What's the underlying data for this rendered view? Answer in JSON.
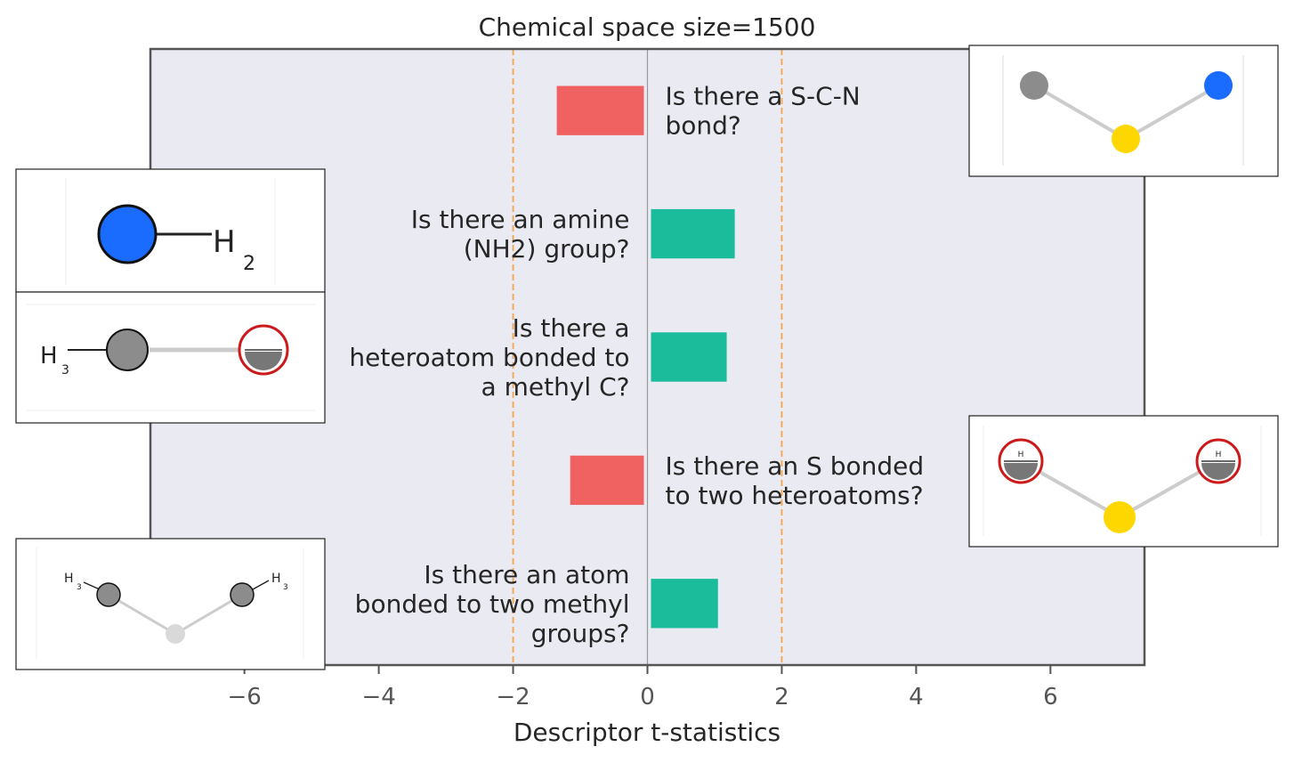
{
  "chart_data": {
    "type": "bar",
    "orientation": "horizontal",
    "title": "Chemical space size=1500",
    "xlabel": "Descriptor t-statistics",
    "ylabel": "",
    "xlim": [
      -7.4,
      7.4
    ],
    "xticks": [
      -6,
      -4,
      -2,
      0,
      2,
      4,
      6
    ],
    "tick_labels": [
      "−6",
      "−4",
      "−2",
      "0",
      "2",
      "4",
      "6"
    ],
    "reference_lines": [
      -2,
      2
    ],
    "grid": false,
    "categories": [
      "Is there a S-C-N bond?",
      "Is there an amine (NH2) group?",
      "Is there a heteroatom bonded to a methyl C?",
      "Is there an S bonded to two heteroatoms?",
      "Is there an atom bonded to two methyl groups?"
    ],
    "label_lines": [
      [
        "Is there a S-C-N",
        "bond?"
      ],
      [
        "Is there an amine",
        "(NH2) group?"
      ],
      [
        "Is there a",
        "heteroatom bonded to",
        "a methyl C?"
      ],
      [
        "Is there an S bonded",
        "to two heteroatoms?"
      ],
      [
        "Is there an atom",
        "bonded to two methyl",
        "groups?"
      ]
    ],
    "values": [
      -1.35,
      1.3,
      1.18,
      -1.15,
      1.05
    ],
    "colors": {
      "positive": "#1abc9c",
      "negative": "#f06262",
      "reference_line": "#f5a54a",
      "plot_background": "#eaeaf2",
      "zero_line": "#999999"
    }
  },
  "molecules": [
    {
      "id": "scn",
      "labels": []
    },
    {
      "id": "nh2",
      "labels": [
        "H",
        "2"
      ]
    },
    {
      "id": "methyl-hetero",
      "labels": [
        "H",
        "3"
      ]
    },
    {
      "id": "s-two-hetero",
      "labels": [
        "H",
        "H"
      ]
    },
    {
      "id": "two-methyl",
      "labels": [
        "H",
        "3",
        "H",
        "3"
      ]
    }
  ]
}
